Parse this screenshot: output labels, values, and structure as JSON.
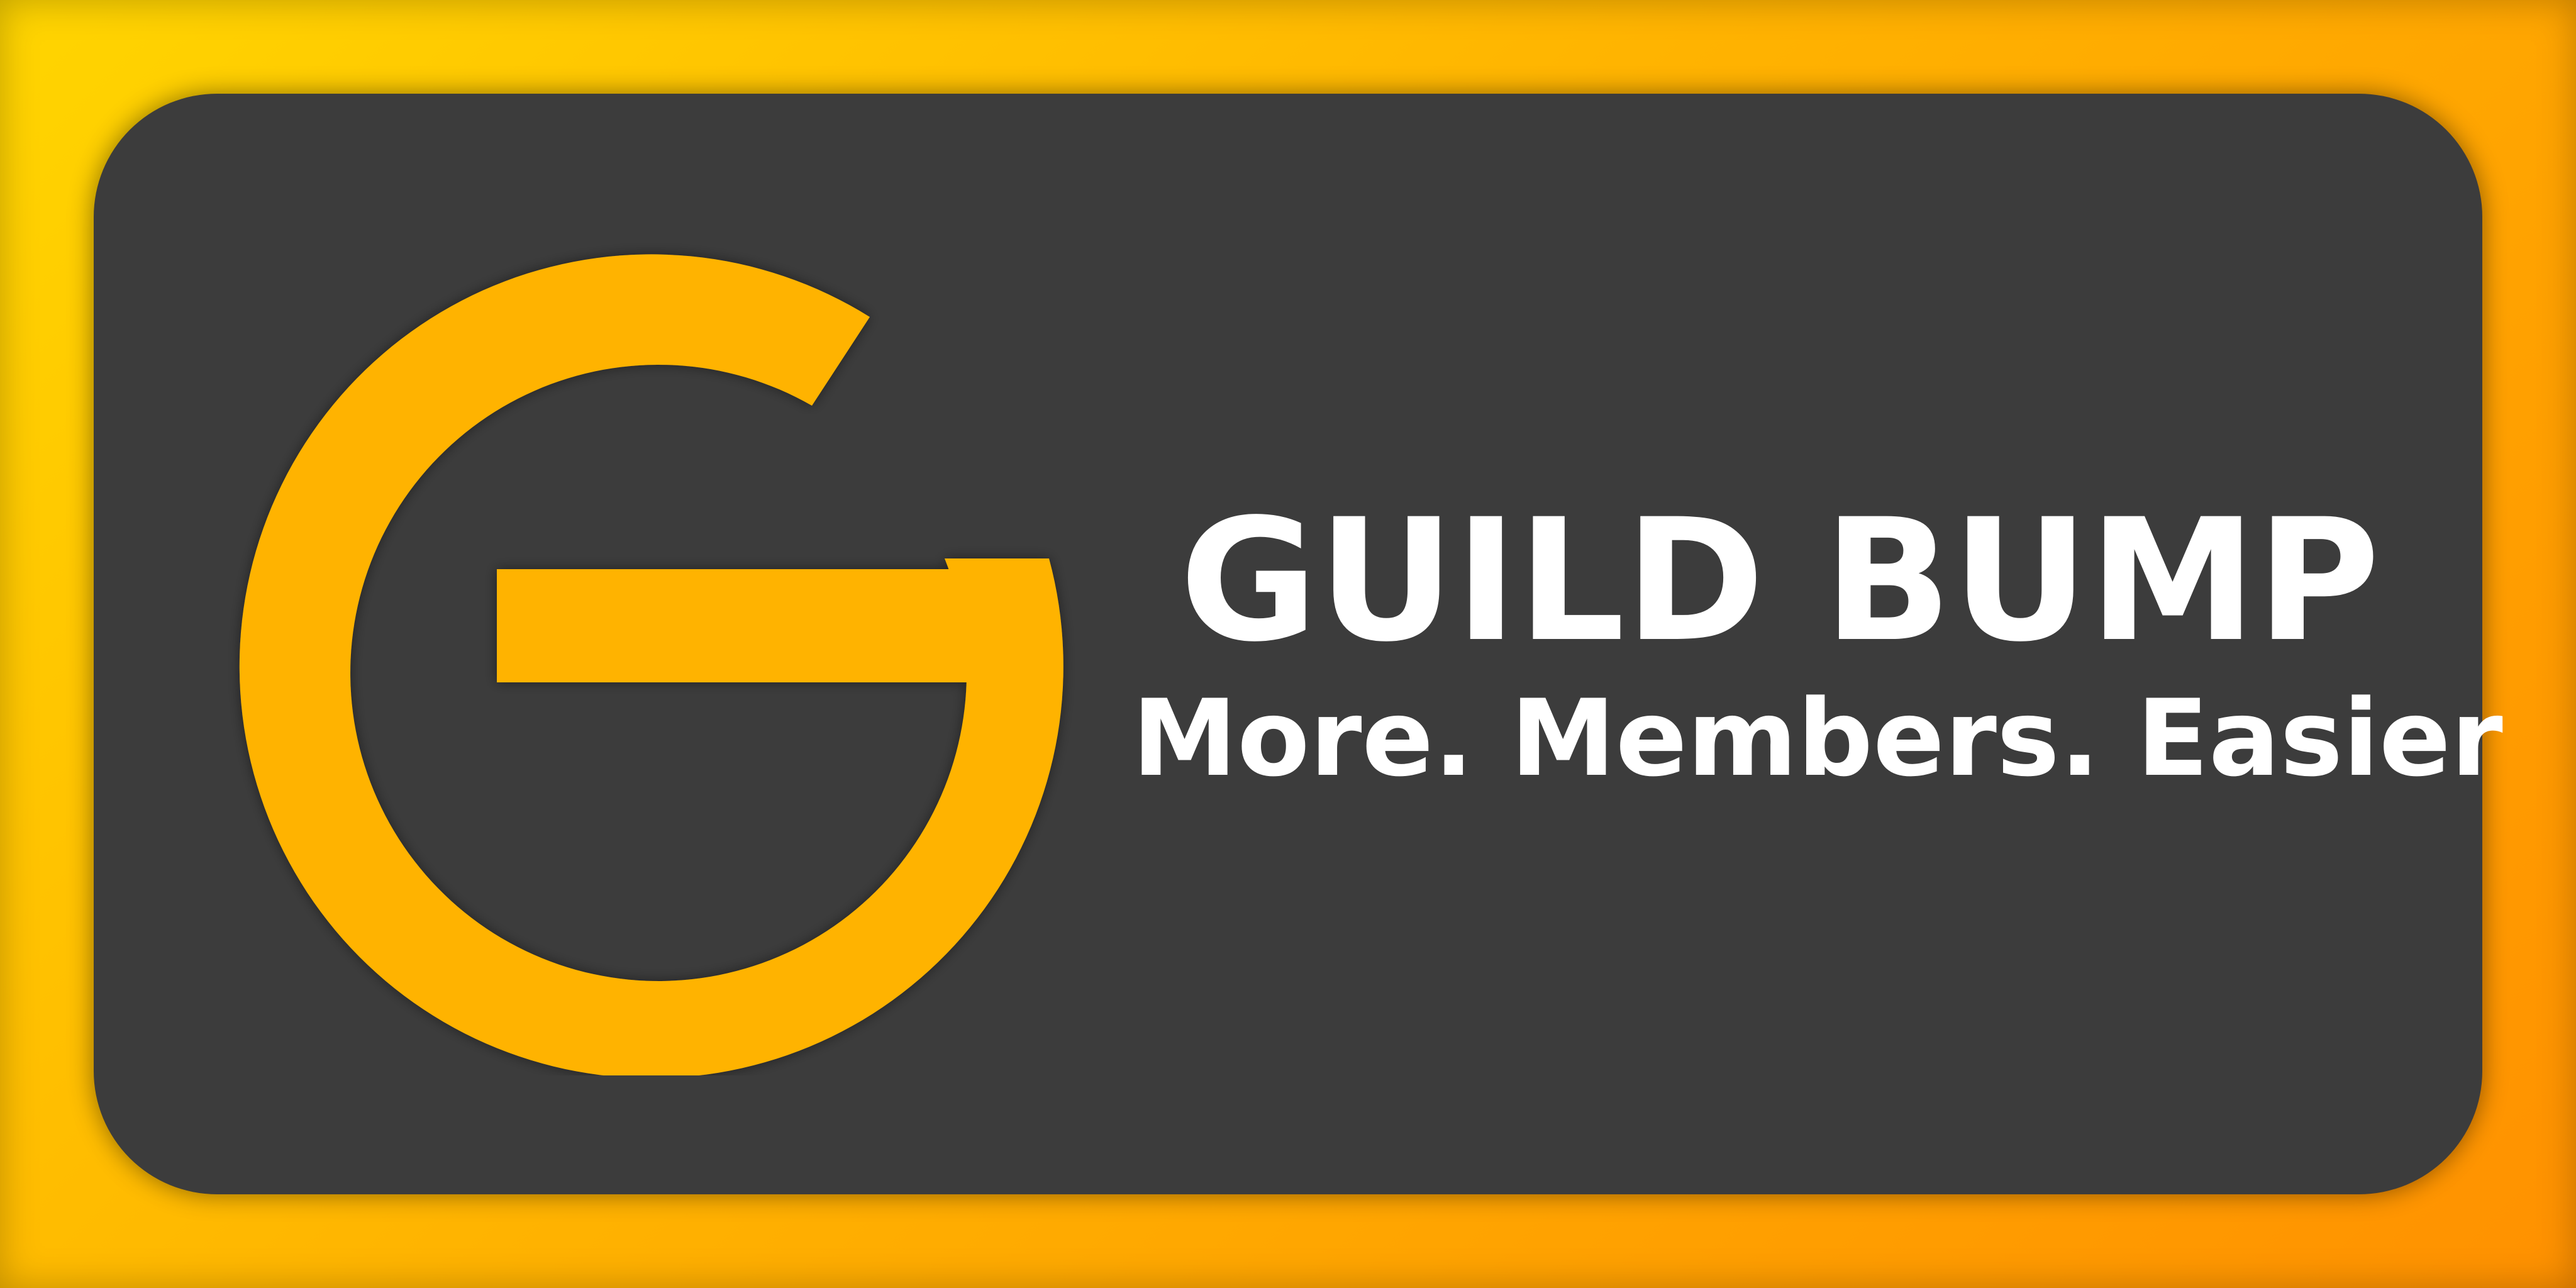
{
  "brand": {
    "name": "GUILD BUMP",
    "tagline": "More. Members. Easier",
    "logo_icon": "g-letter-logo-icon"
  },
  "colors": {
    "frame_gradient_start": "#FFD500",
    "frame_gradient_end": "#FF9100",
    "card_background": "#3c3c3c",
    "logo_color": "#FFB300",
    "text_color": "#ffffff"
  }
}
